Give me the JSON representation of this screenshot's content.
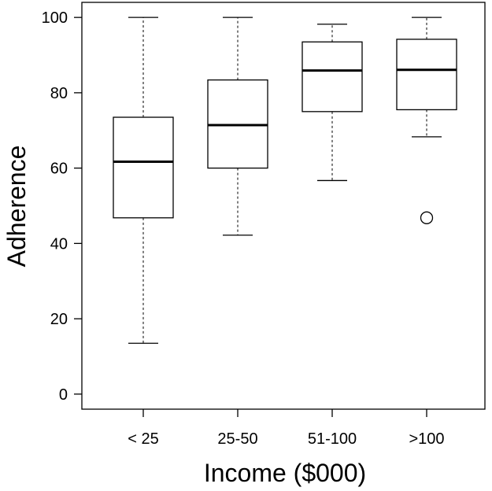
{
  "chart_data": {
    "type": "boxplot",
    "title": "",
    "xlabel": "Income ($000)",
    "ylabel": "Adherence",
    "ylim": [
      -4,
      104
    ],
    "yticks": [
      0,
      20,
      40,
      60,
      80,
      100
    ],
    "ytick_labels": [
      "0",
      "20",
      "40",
      "60",
      "80",
      "100"
    ],
    "categories": [
      "< 25",
      "25-50",
      "51-100",
      ">100"
    ],
    "boxes": [
      {
        "whisker_low": 13.5,
        "q1": 46.8,
        "median": 61.7,
        "q3": 73.5,
        "whisker_high": 100,
        "outliers": []
      },
      {
        "whisker_low": 42.2,
        "q1": 60.0,
        "median": 71.4,
        "q3": 83.4,
        "whisker_high": 100,
        "outliers": []
      },
      {
        "whisker_low": 56.7,
        "q1": 75.0,
        "median": 85.9,
        "q3": 93.5,
        "whisker_high": 98.2,
        "outliers": []
      },
      {
        "whisker_low": 68.3,
        "q1": 75.5,
        "median": 86.1,
        "q3": 94.2,
        "whisker_high": 100,
        "outliers": [
          46.8
        ]
      }
    ],
    "grid": false,
    "legend": "none",
    "colors": {
      "box_fill": "#ffffff",
      "stroke": "#000000"
    }
  }
}
